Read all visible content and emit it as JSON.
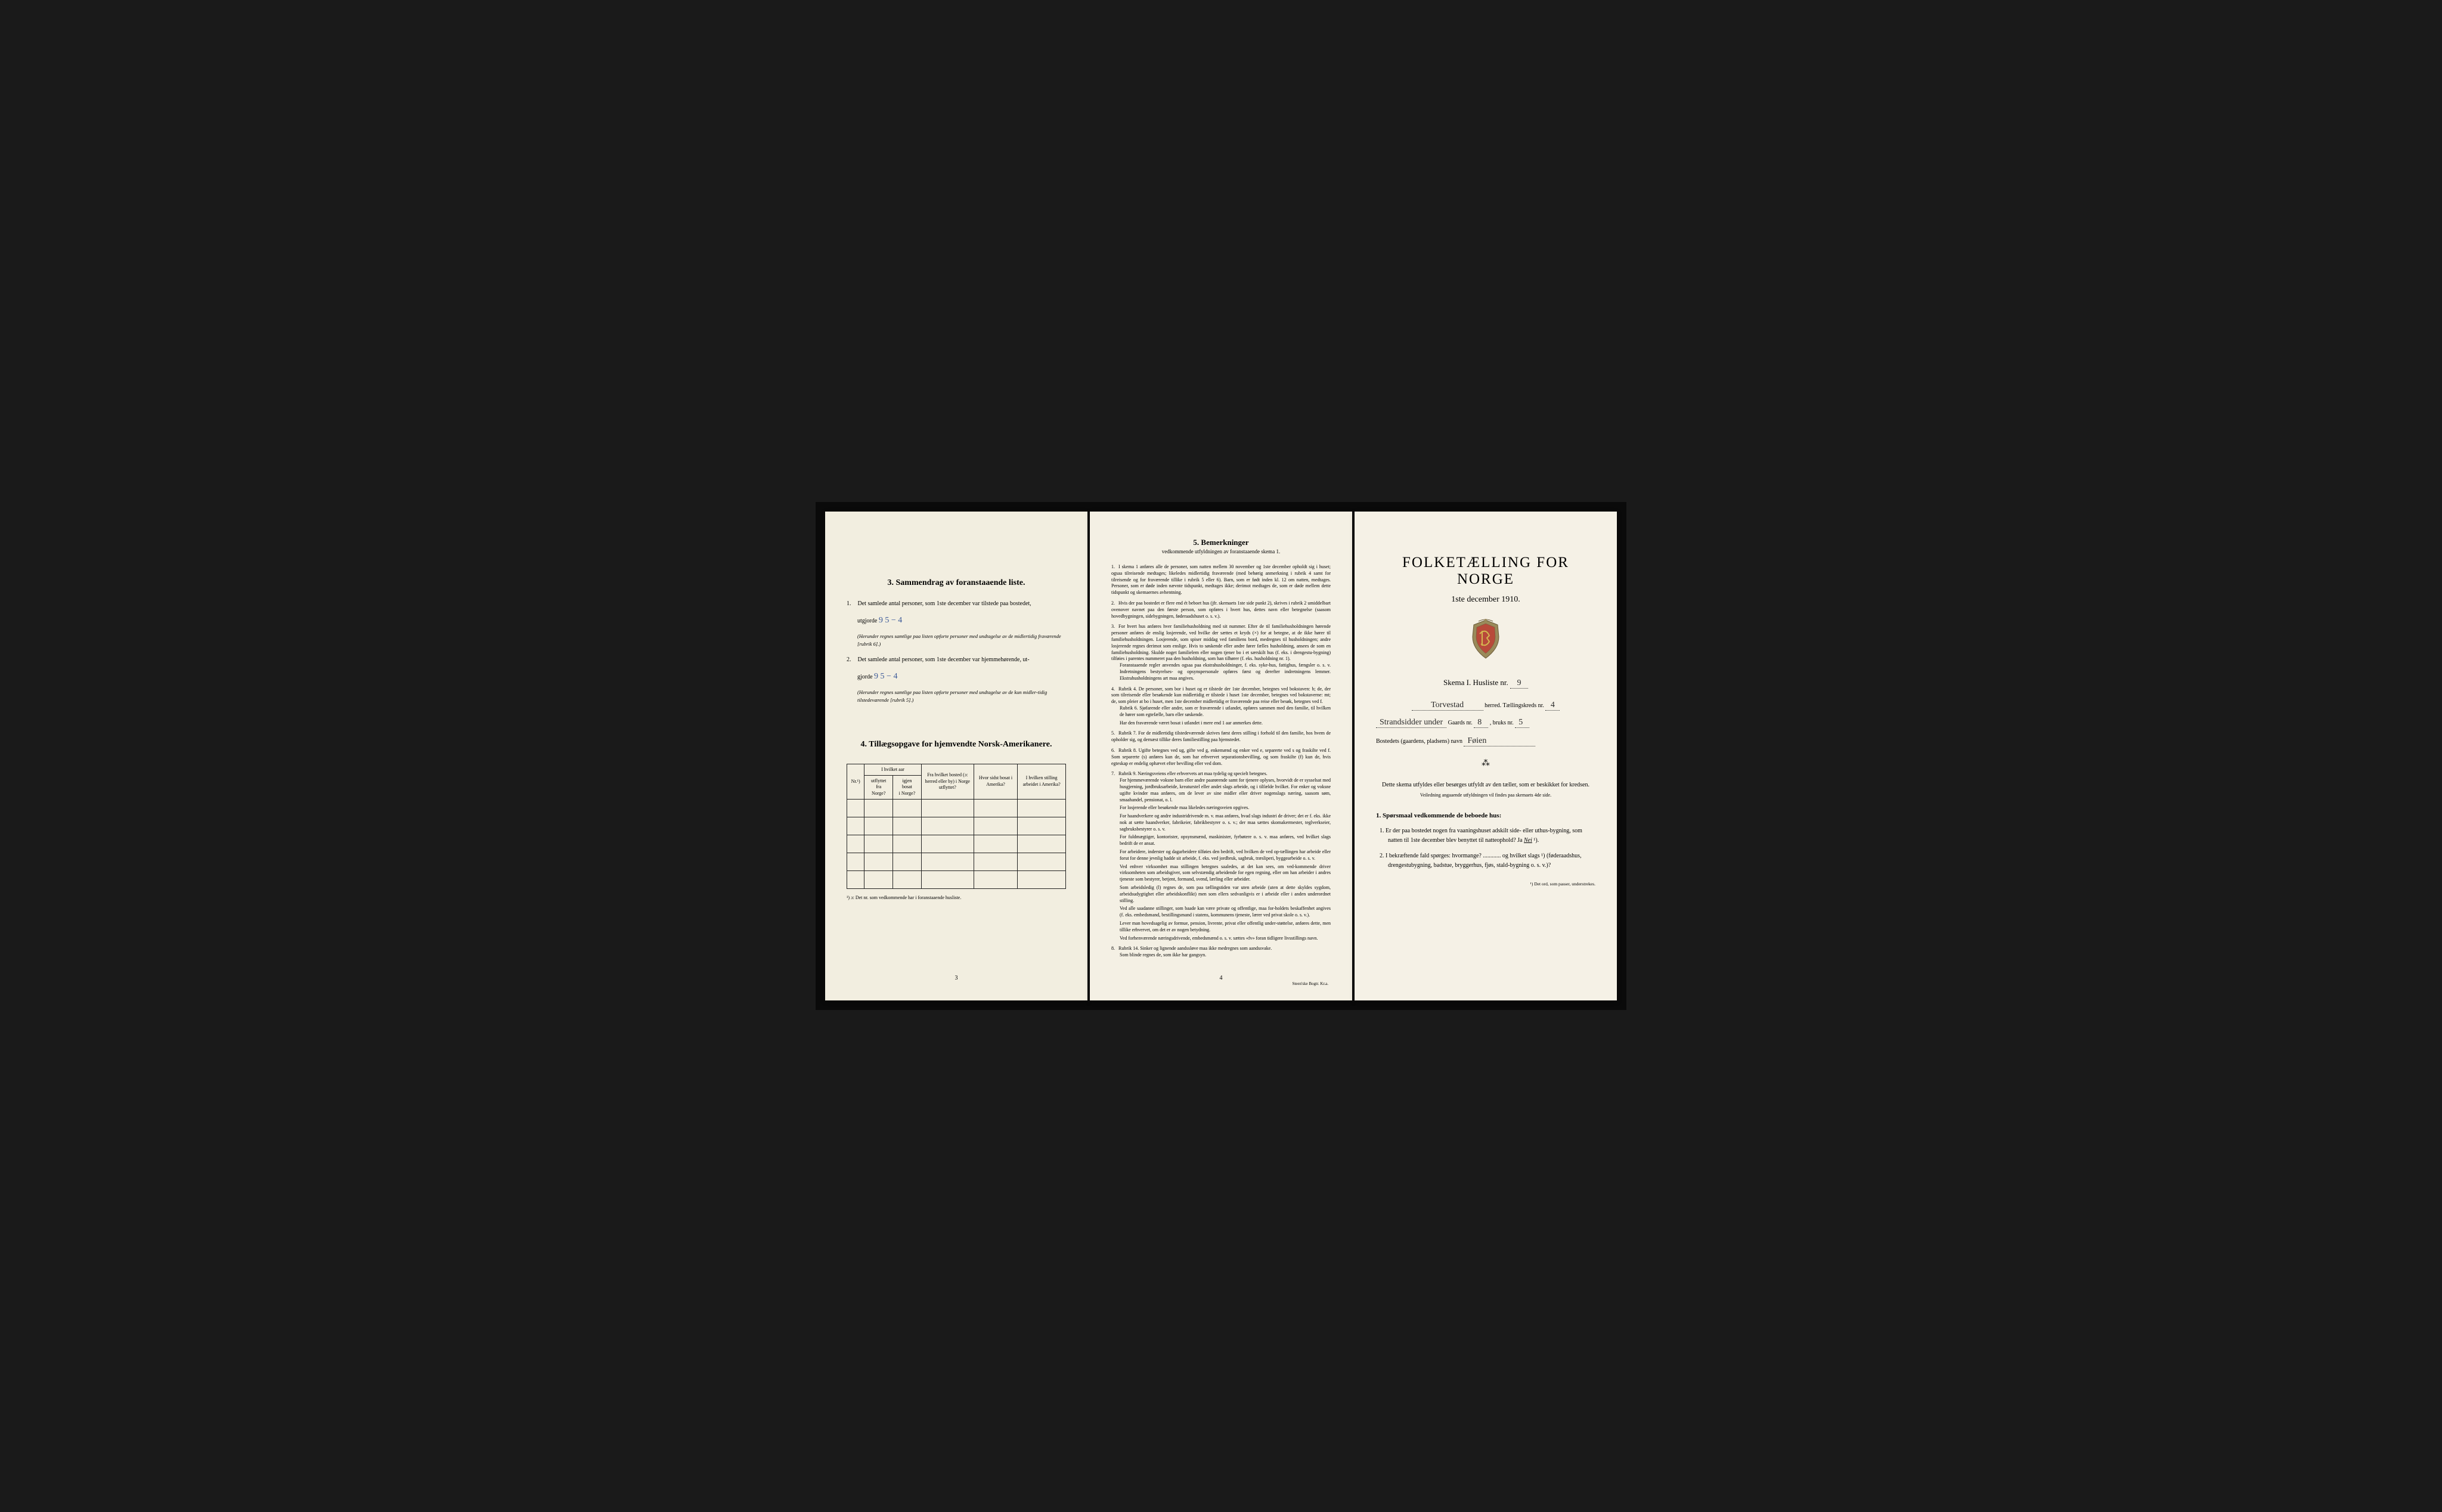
{
  "leftPage": {
    "section3": {
      "heading": "3.   Sammendrag av foranstaaende liste.",
      "item1_prefix": "1.",
      "item1_text": "Det samlede antal personer, som 1ste december var tilstede paa bostedet,",
      "item1_line2_prefix": "utgjorde",
      "item1_value": "9   5 − 4",
      "item1_note": "(Herunder regnes samtlige paa listen opforte personer med undtagelse av de midlertidig fraværende [rubrik 6].)",
      "item2_prefix": "2.",
      "item2_text": "Det samlede antal personer, som 1ste december var hjemmehørende, ut-",
      "item2_line2_prefix": "gjorde",
      "item2_value": "9    5 − 4",
      "item2_note": "(Herunder regnes samtlige paa listen opforte personer med undtagelse av de kun midler-tidig tilstedeværende [rubrik 5].)"
    },
    "section4": {
      "heading": "4.   Tillægsopgave for hjemvendte Norsk-Amerikanere.",
      "columns": [
        "Nr.¹)",
        "I hvilket aar\nutflyttet\nfra\nNorge?",
        "igjen\nbosat\ni Norge?",
        "Fra hvilket bosted\n(ɔ: herred eller by)\ni Norge utflyttet?",
        "Hvor sidst\nbosat\ni Amerika?",
        "I hvilken stilling\narbeidet\ni Amerika?"
      ],
      "footnote": "¹) ɔ: Det nr. som vedkommende har i foranstaaende husliste."
    },
    "pageNum": "3"
  },
  "middlePage": {
    "heading": "5.   Bemerkninger",
    "subheading": "vedkommende utfyldningen av foranstaaende skema 1.",
    "items": [
      {
        "num": "1.",
        "paras": [
          "I skema 1 anføres alle de personer, som natten mellem 30 november og 1ste december opholdt sig i huset; ogsaa tilreisende medtages; likeledes midlertidig fraværende (med behørig anmerkning i rubrik 4 samt for tilreisende og for fraværende tillike i rubrik 5 eller 6). Barn, som er født inden kl. 12 om natten, medtages. Personer, som er døde inden nævnte tidspunkt, medtages ikke; derimot medtages de, som er døde mellem dette tidspunkt og skemaernes avhentning."
        ]
      },
      {
        "num": "2.",
        "paras": [
          "Hvis der paa bostedet er flere end ét beboet hus (jfr. skemaets 1ste side punkt 2), skrives i rubrik 2 umiddelbart ovenover navnet paa den første person, som opføres i hvert hus, dettes navn eller betegnelse (saasom hovedbygningen, sidebygningen, føderaadshuset o. s. v.)."
        ]
      },
      {
        "num": "3.",
        "paras": [
          "For hvert hus anføres hver familiehusholdning med sit nummer. Efter de til familiehusholdningen hørende personer anføres de enslig losjerende, ved hvilke der sættes et kryds (×) for at betegne, at de ikke hører til familiehusholdningen. Losjerende, som spiser middag ved familiens bord, medregnes til husholdningen; andre losjerende regnes derimot som enslige. Hvis to søskende eller andre fører fælles husholdning, ansees de som en familiehusholdning. Skulde noget familielem eller nogen tjener bo i et særskilt hus (f. eks. i drengestu-bygning) tilføies i parentes nummeret paa den husholdning, som han tilhører (f. eks. husholdning nr. 1).",
          "Foranstaaende regler anvendes ogsaa paa ekstrahusholdninger, f. eks. syke-hus, fattighus, fængsler o. s. v. Indretningens bestyrelses- og opsynspersonale opføres først og derefter indretningens lemmer. Ekstrahusholdningens art maa angives."
        ]
      },
      {
        "num": "4.",
        "paras": [
          "Rubrik 4. De personer, som bor i huset og er tilstede der 1ste december, betegnes ved bokstaven: b; de, der som tilreisende eller besøkende kun midlertidig er tilstede i huset 1ste december, betegnes ved bokstaverne: mt; de, som pleier at bo i huset, men 1ste december midlertidig er fraværende paa reise eller besøk, betegnes ved f.",
          "Rubrik 6. Sjøfarende eller andre, som er fraværende i utlandet, opføres sammen med den familie, til hvilken de hører som egtefælle, barn eller søskende.",
          "Har den fraværende været bosat i utlandet i mere end 1 aar anmerkes dette."
        ]
      },
      {
        "num": "5.",
        "paras": [
          "Rubrik 7. For de midlertidig tilstedeværende skrives først deres stilling i forhold til den familie, hos hvem de opholder sig, og dernæst tillike deres familiestilling paa hjemstedet."
        ]
      },
      {
        "num": "6.",
        "paras": [
          "Rubrik 8. Ugifte betegnes ved ug, gifte ved g, enkemænd og enker ved e, separerte ved s og fraskilte ved f. Som separerte (s) anføres kun de, som har erhvervet separationsbevilling, og som fraskilte (f) kun de, hvis egteskap er endelig ophævet efter bevilling eller ved dom."
        ]
      },
      {
        "num": "7.",
        "paras": [
          "Rubrik 9. Næringsveiens eller erhvervets art maa tydelig og specielt betegnes.",
          "For hjemmeværende voksne barn eller andre paarørende samt for tjenere oplyses, hvorvidt de er sysselsat med husgjerning, jordbruksarbeide, kreaturstel eller andet slags arbeide, og i tilfælde hvilket. For enker og voksne ugifte kvinder maa anføres, om de lever av sine midler eller driver nogenslags næring, saasom søm, smaahandel, pensionat, o. l.",
          "For losjerende eller besøkende maa likeledes næringsveien opgives.",
          "For haandverkere og andre industridrivende m. v. maa anføres, hvad slags industri de driver; det er f. eks. ikke nok at sætte haandverker, fabrikeier, fabrikbestyrer o. s. v.; der maa sættes skomakermester, teglverkseier, sagbruksbestyrer o. s. v.",
          "For fuldmægtiger, kontorister, opsynsmænd, maskinister, fyrbøtere o. s. v. maa anføres, ved hvilket slags bedrift de er ansat.",
          "For arbeidere, inderster og dagarbeidere tilføies den bedrift, ved hvilken de ved op-tællingen har arbeide eller forut for denne jevnlig hadde sit arbeide, f. eks. ved jordbruk, sagbruk, træsliperi, byggearbeide o. s. v.",
          "Ved enhver virksomhet maa stillingen betegnes saaledes, at det kan sees, om ved-kommende driver virksomheten som arbeidsgiver, som selvstændig arbeidende for egen regning, eller om han arbeider i andres tjeneste som bestyrer, betjent, formand, svend, lærling eller arbeider.",
          "Som arbeidsledig (l) regnes de, som paa tællingstiden var uten arbeide (uten at dette skyldes sygdom, arbeidsudygtighet eller arbeidskonflikt) men som ellers sedvanligvis er i arbeide eller i anden underordnet stilling.",
          "Ved alle saadanne stillinger, som baade kan være private og offentlige, maa for-holdets beskaffenhet angives (f. eks. embedsmand, bestillingsmand i statens, kommunens tjeneste, lærer ved privat skole o. s. v.).",
          "Lever man hovedsagelig av formue, pension, livrente, privat eller offentlig under-støttelse, anføres dette, men tillike erhvervet, om det er av nogen betydning.",
          "Ved forhenværende næringsdrivende, embedsmænd o. s. v. sættes «fv» foran tidligere livsstillings navn."
        ]
      },
      {
        "num": "8.",
        "paras": [
          "Rubrik 14. Sinker og lignende aandssløve maa ikke medregnes som aandssvake.",
          "Som blinde regnes de, som ikke har gangsyn."
        ]
      }
    ],
    "pageNum": "4",
    "printer": "Steen'ske Bogtr.  Kr.a."
  },
  "rightPage": {
    "title": "FOLKETÆLLING FOR NORGE",
    "date": "1ste december 1910.",
    "schema_label": "Skema I.   Husliste nr.",
    "schema_value": "9",
    "herred_value": "Torvestad",
    "herred_suffix": " herred.   Tællingskreds nr.",
    "kreds_value": "4",
    "gaard_prefix": "Strandsidder under",
    "gaard_label": "Gaards nr.",
    "gaard_value": "8",
    "bruks_label": ", bruks nr.",
    "bruks_value": "5",
    "bosted_label": "Bostedets (gaardens, pladsens) navn",
    "bosted_value": "Føien",
    "instruction1": "Dette skema utfyldes eller besørges utfyldt av den tæller, som er beskikket for kredsen.",
    "instruction2": "Veiledning angaaende utfyldningen vil findes paa skemaets 4de side.",
    "q_heading": "1. Spørsmaal vedkommende de beboede hus:",
    "q1_num": "1.",
    "q1_text": "Er der paa bostedet nogen fra vaaningshuset adskilt side- eller uthus-bygning, som natten til 1ste december blev benyttet til natteophold?   Ja   ",
    "q1_answer": "Nei",
    "q1_suffix": " ¹).",
    "q2_num": "2.",
    "q2_text": "I bekræftende fald spørges: hvormange? ............ og hvilket slags ¹) (føderaadshus, drengestubygning, badstue, bryggerhus, fjøs, stald-bygning o. s. v.)?",
    "footnote": "¹) Det ord, som passer, understrekes."
  },
  "colors": {
    "pageBackground": "#f4f0e4",
    "text": "#1a1a1a",
    "handwritten": "#3b5998",
    "border": "#222222"
  }
}
